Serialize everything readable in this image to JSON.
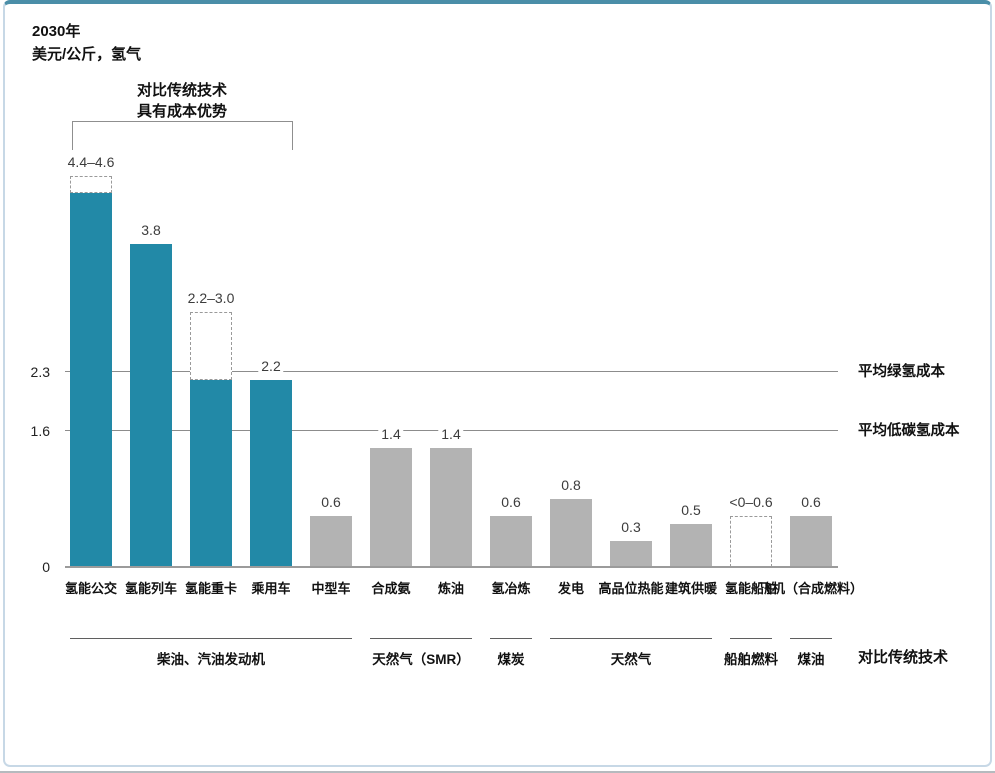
{
  "header": {
    "title_line1": "2030年",
    "title_line2": "美元/公斤，氢气"
  },
  "annotation": {
    "line1": "对比传统技术",
    "line2": "具有成本优势"
  },
  "chart_data": {
    "type": "bar",
    "title": "2030年",
    "ylabel": "美元/公斤，氢气",
    "baseline_label": "0",
    "ylim": [
      0,
      4.6
    ],
    "colors": {
      "hydrogen_bar": "#2289a7",
      "conventional_bar": "#b3b3b3",
      "frame_top_rule": "#4a8ea8",
      "frame_border": "#c7d8e6"
    },
    "bars": [
      {
        "category": "氢能公交",
        "value": 4.4,
        "range_max": 4.6,
        "label": "4.4–4.6",
        "color_key": "teal"
      },
      {
        "category": "氢能列车",
        "value": 3.8,
        "label": "3.8",
        "color_key": "teal"
      },
      {
        "category": "氢能重卡",
        "value": 2.2,
        "range_max": 3.0,
        "label": "2.2–3.0",
        "color_key": "teal"
      },
      {
        "category": "乘用车",
        "value": 2.2,
        "label": "2.2",
        "color_key": "teal"
      },
      {
        "category": "中型车",
        "value": 0.6,
        "label": "0.6",
        "color_key": "gray"
      },
      {
        "category": "合成氨",
        "value": 1.4,
        "label": "1.4",
        "color_key": "gray"
      },
      {
        "category": "炼油",
        "value": 1.4,
        "label": "1.4",
        "color_key": "gray"
      },
      {
        "category": "氢冶炼",
        "value": 0.6,
        "label": "0.6",
        "color_key": "gray"
      },
      {
        "category": "发电",
        "value": 0.8,
        "label": "0.8",
        "color_key": "gray"
      },
      {
        "category": "高品位热能",
        "value": 0.3,
        "label": "0.3",
        "color_key": "gray"
      },
      {
        "category": "建筑供暖",
        "value": 0.5,
        "label": "0.5",
        "color_key": "gray"
      },
      {
        "category": "氢能船舶",
        "value": 0,
        "range_max": 0.6,
        "label": "<0–0.6",
        "color_key": "dashed"
      },
      {
        "category": "飞机（合成燃料）",
        "value": 0.6,
        "label": "0.6",
        "color_key": "gray"
      }
    ],
    "reference_lines": [
      {
        "value": 2.3,
        "axis_label": "2.3",
        "label": "平均绿氢成本"
      },
      {
        "value": 1.6,
        "axis_label": "1.6",
        "label": "平均低碳氢成本"
      }
    ],
    "comparison_groups": [
      {
        "label": "柴油、汽油发动机",
        "start_bar": 0,
        "end_bar": 4
      },
      {
        "label": "天然气（SMR）",
        "start_bar": 5,
        "end_bar": 6
      },
      {
        "label": "煤炭",
        "start_bar": 7,
        "end_bar": 7
      },
      {
        "label": "天然气",
        "start_bar": 8,
        "end_bar": 10
      },
      {
        "label": "船舶燃料",
        "start_bar": 11,
        "end_bar": 11
      },
      {
        "label": "煤油",
        "start_bar": 12,
        "end_bar": 12
      }
    ],
    "comparison_axis_label": "对比传统技术"
  }
}
